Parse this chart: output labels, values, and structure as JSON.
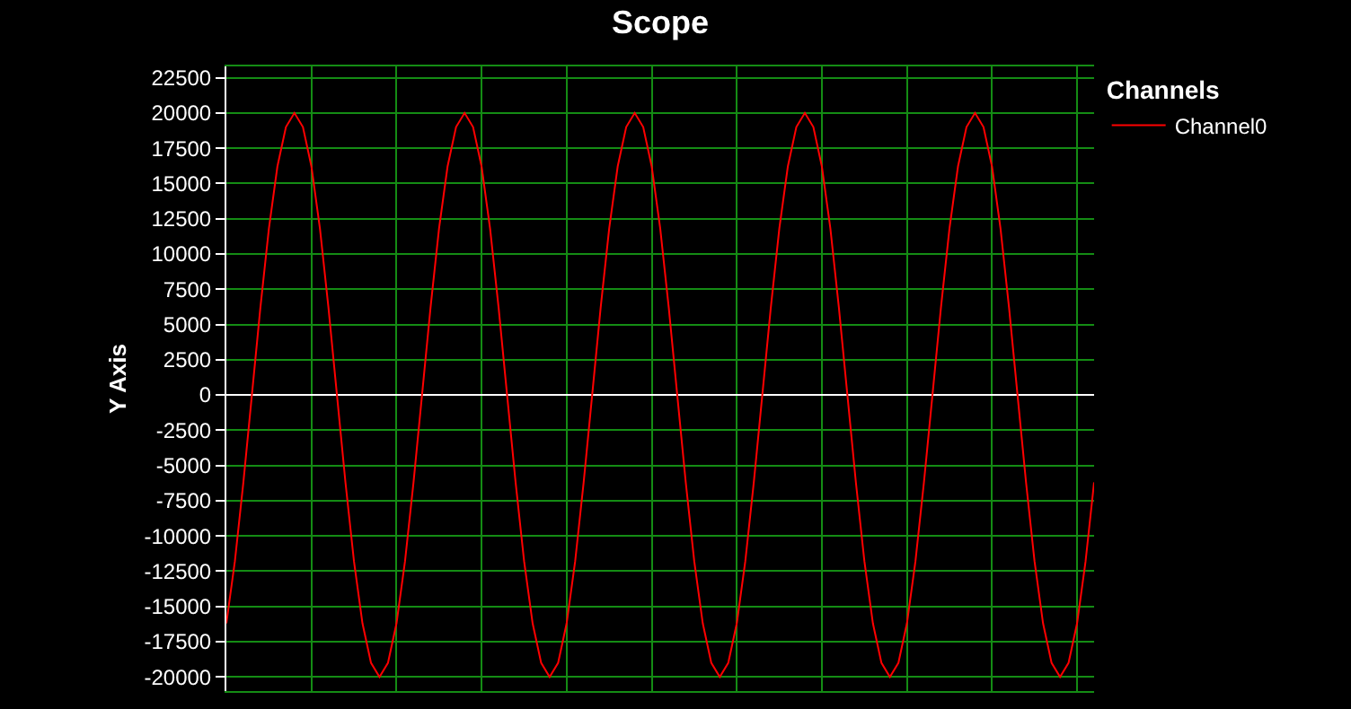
{
  "chart_data": {
    "type": "line",
    "title": "Scope",
    "ylabel": "Y Axis",
    "legend_title": "Channels",
    "legend": "top right",
    "grid": true,
    "marker": "none",
    "line_style": "solid",
    "ylim": [
      -21000,
      23300
    ],
    "yticks": [
      -20000,
      -17500,
      -15000,
      -12500,
      -10000,
      -7500,
      -5000,
      -2500,
      0,
      2500,
      5000,
      7500,
      10000,
      12500,
      15000,
      17500,
      20000,
      22500
    ],
    "categories": [
      null,
      null,
      null,
      null,
      null,
      null,
      null,
      null,
      null,
      null,
      null,
      null,
      null,
      null,
      null,
      null,
      null,
      null,
      null,
      null,
      null,
      null,
      null,
      null,
      null,
      null,
      null,
      null,
      null,
      null,
      null,
      null,
      null,
      null,
      null,
      null,
      null,
      null,
      null,
      null,
      null,
      null,
      null,
      null,
      null,
      null,
      null,
      null,
      null,
      null,
      null,
      null,
      null,
      null,
      null,
      null,
      null,
      null,
      null,
      null,
      null,
      null,
      null,
      null,
      null,
      null,
      null,
      null,
      null,
      null,
      null,
      null,
      null,
      null,
      null,
      null,
      null,
      null,
      null,
      null,
      null,
      null,
      null,
      null,
      null,
      null,
      null,
      null,
      null,
      null,
      null,
      null,
      null,
      null,
      null,
      null,
      null,
      null,
      null,
      null,
      null,
      null,
      null
    ],
    "series": [
      {
        "name": "Channel0",
        "color": "#ff0000",
        "values": [
          -16200,
          -11800,
          -6200,
          0,
          6200,
          11800,
          16200,
          19000,
          20000,
          19000,
          16200,
          11800,
          6200,
          0,
          -6200,
          -11800,
          -16200,
          -19000,
          -20000,
          -19000,
          -16200,
          -11800,
          -6200,
          0,
          6200,
          11800,
          16200,
          19000,
          20000,
          19000,
          16200,
          11800,
          6200,
          0,
          -6200,
          -11800,
          -16200,
          -19000,
          -20000,
          -19000,
          -16200,
          -11800,
          -6200,
          0,
          6200,
          11800,
          16200,
          19000,
          20000,
          19000,
          16200,
          11800,
          6200,
          0,
          -6200,
          -11800,
          -16200,
          -19000,
          -20000,
          -19000,
          -16200,
          -11800,
          -6200,
          0,
          6200,
          11800,
          16200,
          19000,
          20000,
          19000,
          16200,
          11800,
          6200,
          0,
          -6200,
          -11800,
          -16200,
          -19000,
          -20000,
          -19000,
          -16200,
          -11800,
          -6200,
          0,
          6200,
          11800,
          16200,
          19000,
          20000,
          19000,
          16200,
          11800,
          6200,
          0,
          -6200,
          -11800,
          -16200,
          -19000,
          -20000,
          -19000,
          -16200,
          -11800,
          -6200
        ]
      }
    ]
  }
}
